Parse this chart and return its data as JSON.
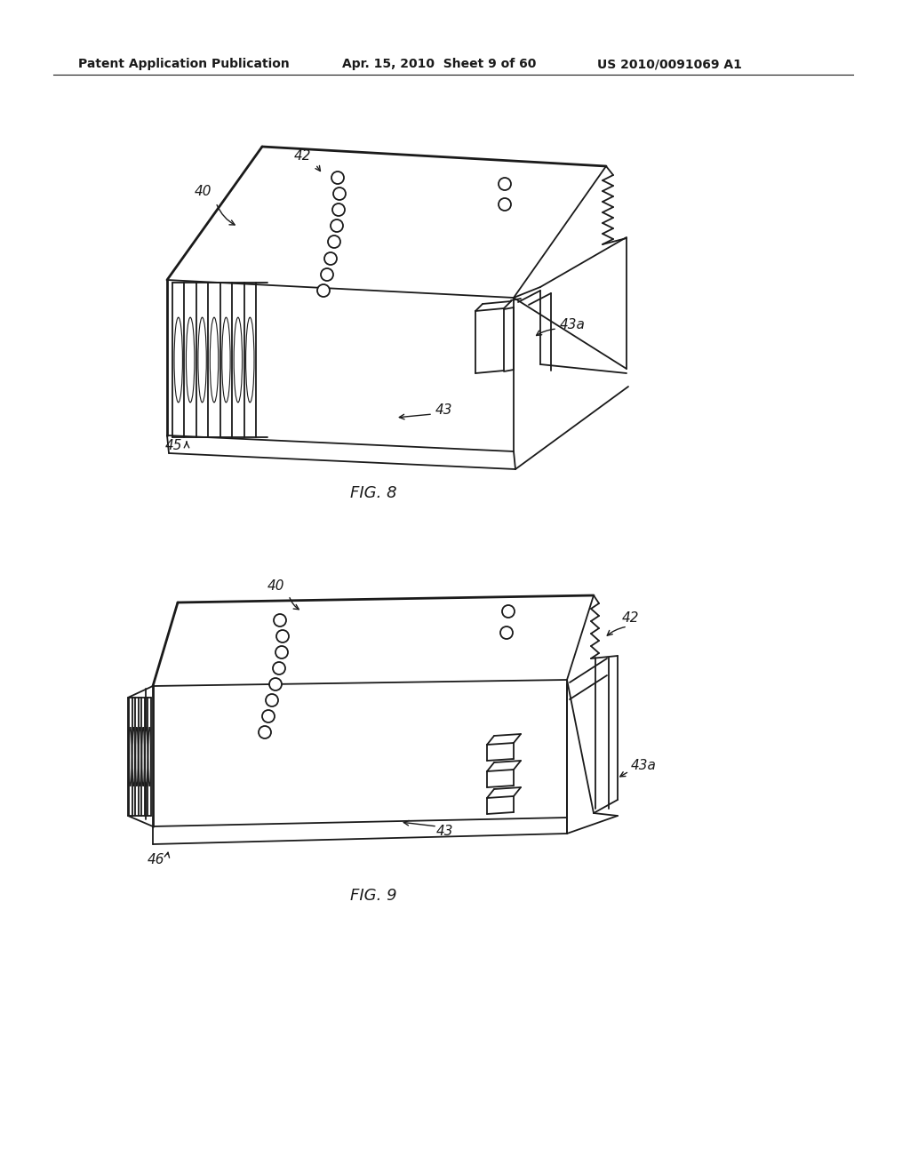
{
  "background_color": "#ffffff",
  "header_left": "Patent Application Publication",
  "header_mid": "Apr. 15, 2010  Sheet 9 of 60",
  "header_right": "US 2010/0091069 A1",
  "fig8_label": "FIG. 8",
  "fig9_label": "FIG. 9",
  "line_color": "#1a1a1a",
  "lw": 1.3,
  "lw_thick": 2.0,
  "ann_fs": 11,
  "hdr_fs": 10,
  "cap_fs": 13
}
